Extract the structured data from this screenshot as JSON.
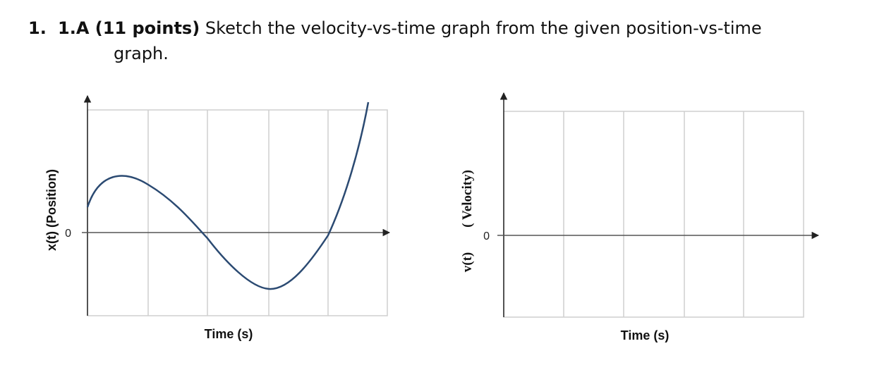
{
  "question": {
    "number": "1.",
    "heading": "1.A (11 points)",
    "text_line1": "Sketch the velocity-vs-time graph from the given position-vs-time",
    "text_line2": "graph."
  },
  "position_graph": {
    "ylabel": "x(t) (Position)",
    "xlabel": "Time (s)",
    "zero_tick": "0",
    "curve_color": "#2b4a72"
  },
  "velocity_graph": {
    "ylabel_var": "v(t)",
    "ylabel_name": "( Velocity)",
    "xlabel": "Time (s)",
    "zero_tick": "0"
  }
}
